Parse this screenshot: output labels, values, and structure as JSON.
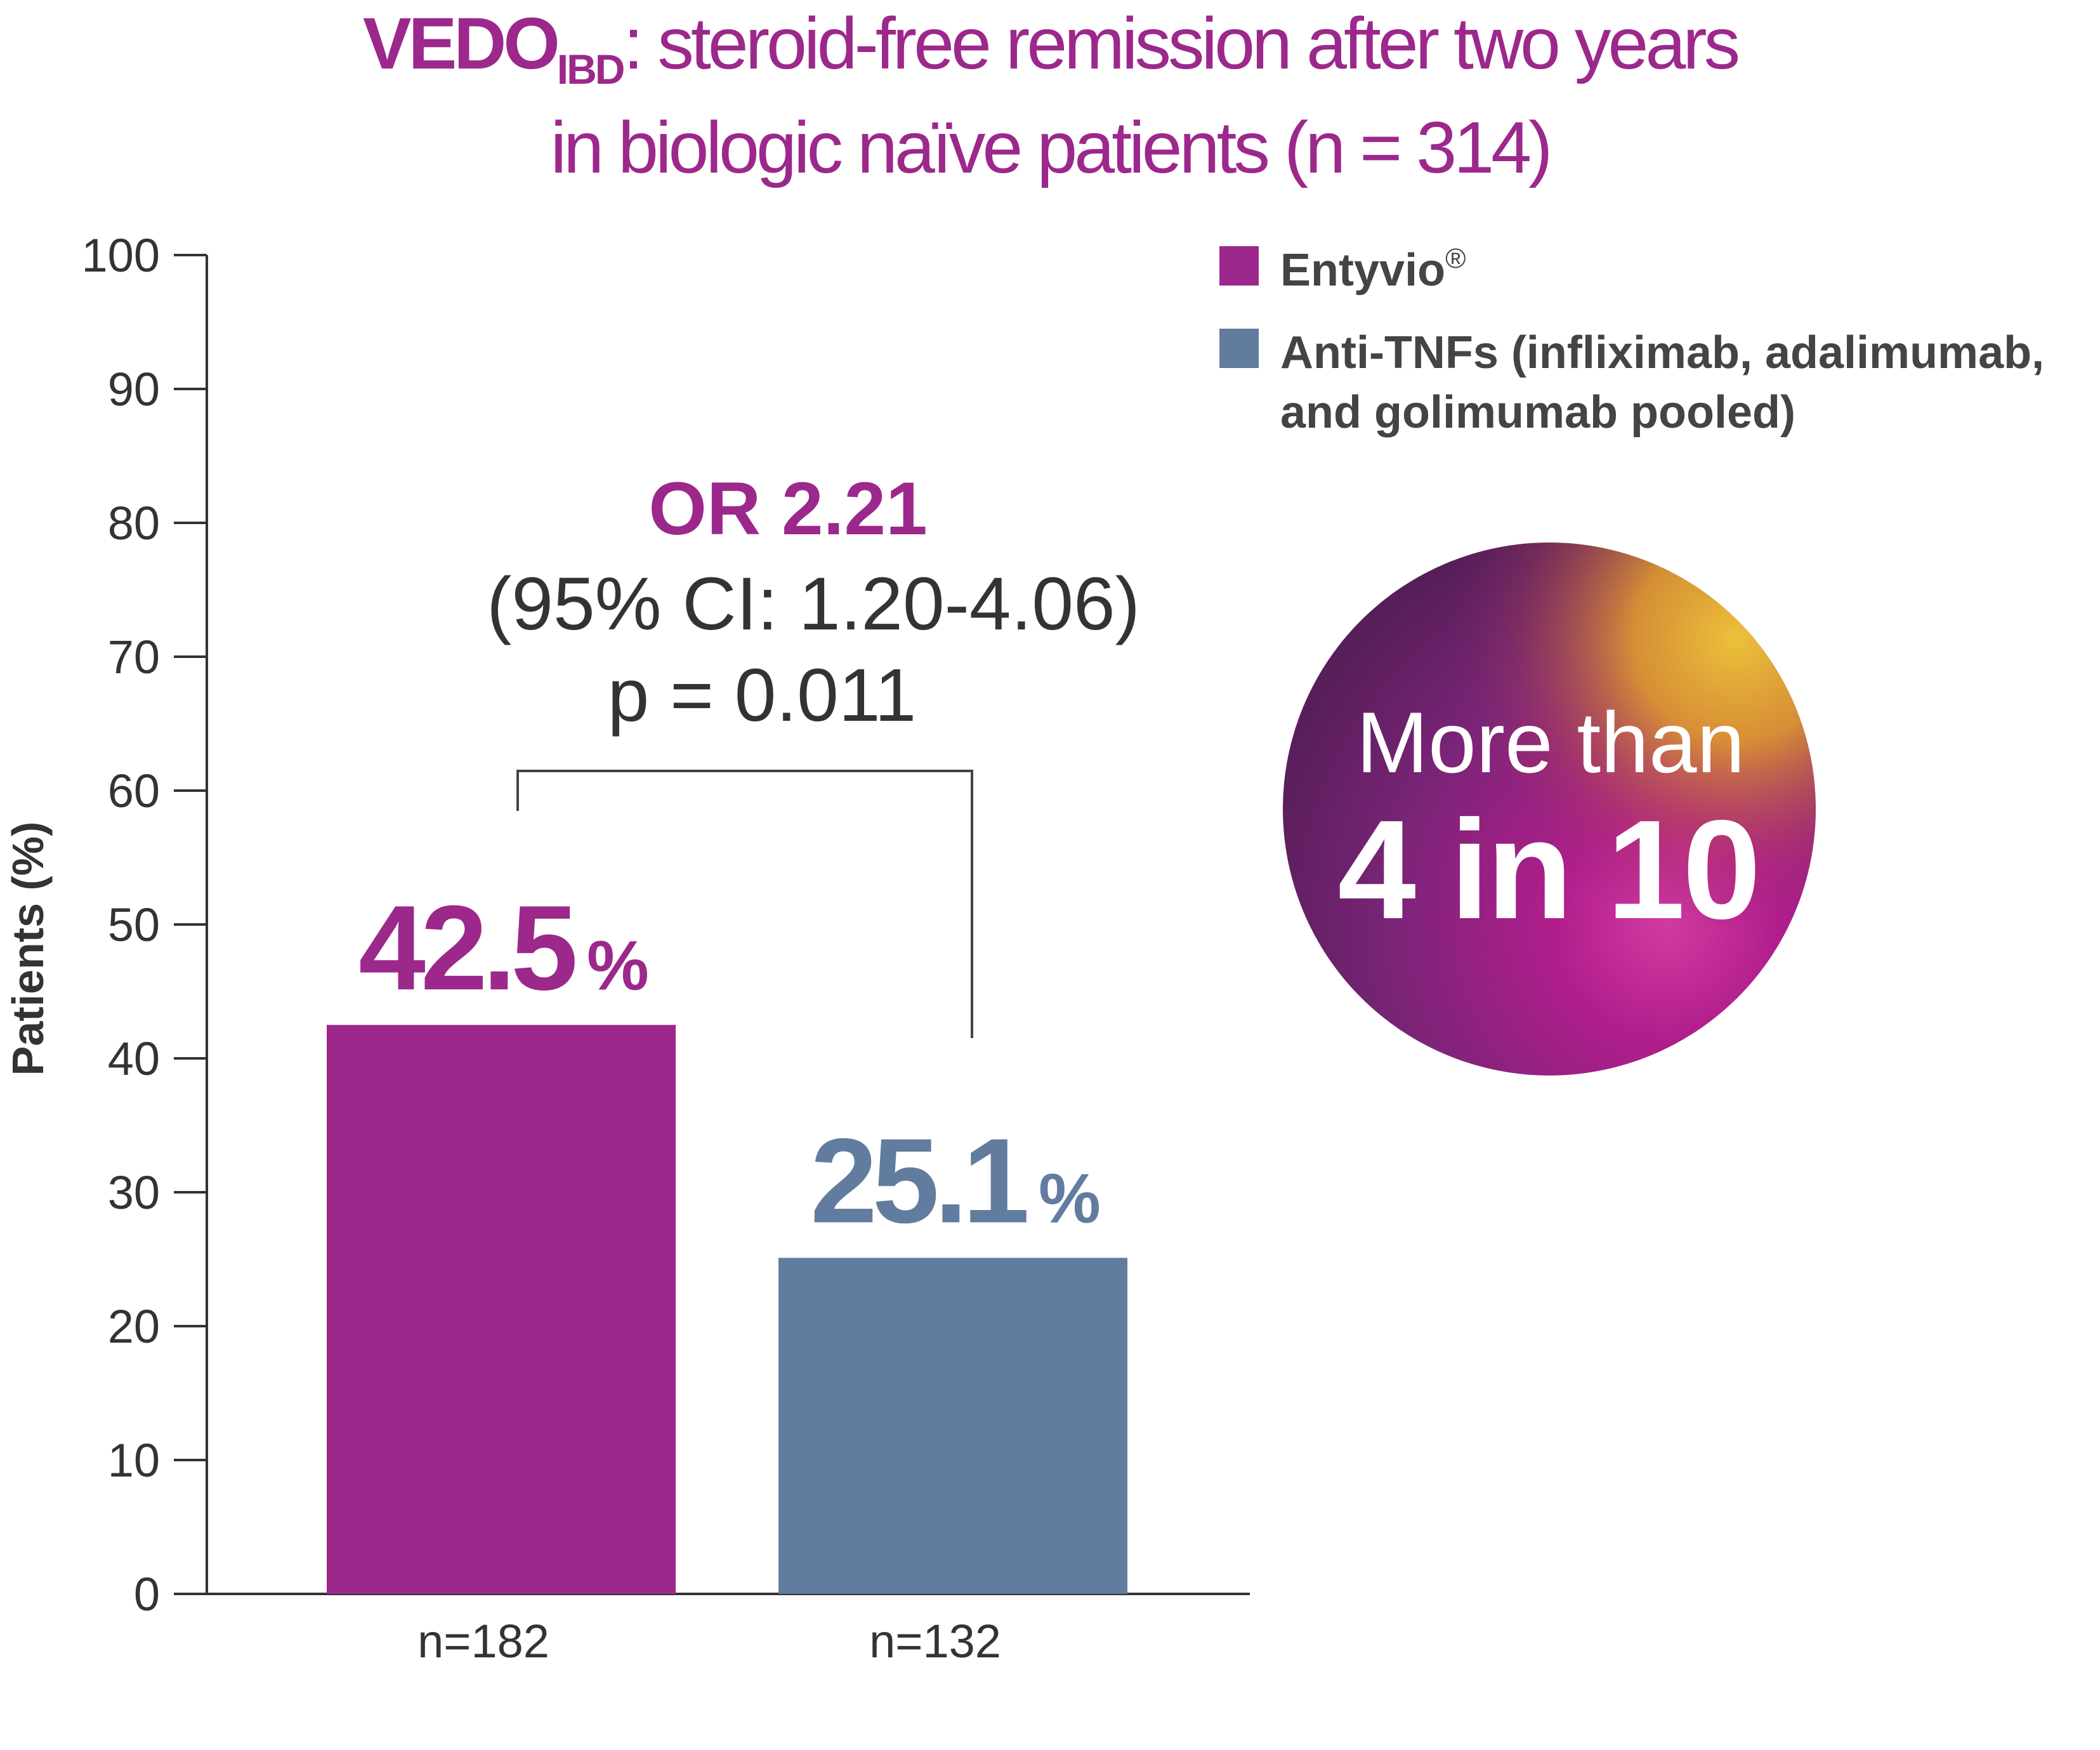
{
  "header": {
    "title_brand": "VEDO",
    "title_brand_sub": "IBD",
    "title_line1_rest": ": steroid-free remission after two years",
    "title_line2": "in biologic naïve patients (n = 314)"
  },
  "chart_data": {
    "type": "bar",
    "title": "VEDO IBD: steroid-free remission after two years in biologic naïve patients (n = 314)",
    "ylabel": "Patients (%)",
    "xlabel": "",
    "ylim": [
      0,
      100
    ],
    "yticks": [
      "0",
      "10",
      "20",
      "30",
      "40",
      "50",
      "60",
      "70",
      "80",
      "90",
      "100"
    ],
    "categories": [
      "n=182",
      "n=132"
    ],
    "series": [
      {
        "name": "Entyvio®",
        "value": 42.5,
        "label": "42.5",
        "color": "#9c288c"
      },
      {
        "name": "Anti-TNFs (infliximab, adalimumab, and golimumab pooled)",
        "value": 25.1,
        "label": "25.1",
        "color": "#627c9f"
      }
    ],
    "value_suffix": "%",
    "legend": {
      "placement": "top-right",
      "items": [
        {
          "name": "Entyvio",
          "mark": "®",
          "color": "#9c288c"
        },
        {
          "name_line1": "Anti-TNFs (infliximab, adalimumab,",
          "name_line2": "and golimumab pooled)",
          "color": "#627c9f"
        }
      ]
    },
    "annotation": {
      "or_label": "OR 2.21",
      "ci_label": "(95% CI: 1.20-4.06)",
      "p_label": "p = 0.011"
    }
  },
  "badge": {
    "line1": "More than",
    "line2": "4 in 10"
  }
}
